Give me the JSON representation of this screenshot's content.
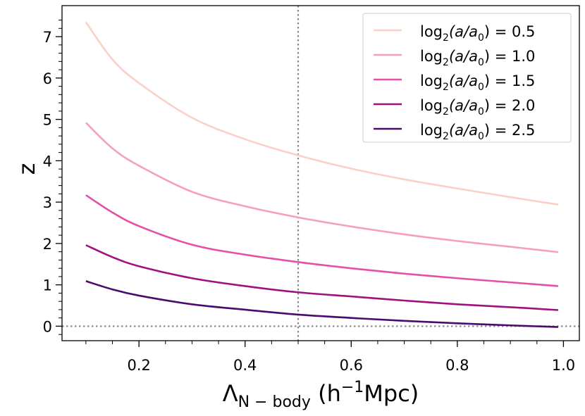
{
  "chart_data": {
    "type": "line",
    "title": "",
    "xlabel": "Λ",
    "xlabel_sub": "N − body",
    "xlabel_units_open": " (h",
    "xlabel_units_sup": "−1",
    "xlabel_units_close": "Mpc)",
    "ylabel": "z",
    "xlim": [
      0.055,
      1.03
    ],
    "ylim": [
      -0.35,
      7.75
    ],
    "xticks": [
      0.2,
      0.4,
      0.6,
      0.8,
      1.0
    ],
    "xtick_labels": [
      "0.2",
      "0.4",
      "0.6",
      "0.8",
      "1.0"
    ],
    "yticks": [
      0,
      1,
      2,
      3,
      4,
      5,
      6,
      7
    ],
    "ytick_labels": [
      "0",
      "1",
      "2",
      "3",
      "4",
      "5",
      "6",
      "7"
    ],
    "reference_lines": [
      {
        "orientation": "vertical",
        "value": 0.5,
        "style": "dotted",
        "color": "#888888"
      },
      {
        "orientation": "horizontal",
        "value": 0.0,
        "style": "dotted",
        "color": "#888888"
      }
    ],
    "legend_position": "top-right",
    "x": [
      0.1,
      0.15,
      0.2,
      0.3,
      0.4,
      0.5,
      0.6,
      0.7,
      0.8,
      0.9,
      0.99
    ],
    "series": [
      {
        "name": "0.5",
        "color": "#fbd0c8",
        "values": [
          7.35,
          6.45,
          5.88,
          5.04,
          4.52,
          4.13,
          3.81,
          3.55,
          3.33,
          3.12,
          2.94
        ]
      },
      {
        "name": "1.0",
        "color": "#f59ec2",
        "values": [
          4.92,
          4.3,
          3.88,
          3.25,
          2.9,
          2.63,
          2.41,
          2.22,
          2.06,
          1.92,
          1.79
        ]
      },
      {
        "name": "1.5",
        "color": "#e64fa6",
        "values": [
          3.17,
          2.75,
          2.42,
          1.97,
          1.73,
          1.55,
          1.4,
          1.27,
          1.16,
          1.06,
          0.97
        ]
      },
      {
        "name": "2.0",
        "color": "#a0107f",
        "values": [
          1.96,
          1.67,
          1.45,
          1.16,
          0.97,
          0.82,
          0.72,
          0.62,
          0.53,
          0.46,
          0.39
        ]
      },
      {
        "name": "2.5",
        "color": "#4a0a6e",
        "values": [
          1.09,
          0.89,
          0.74,
          0.53,
          0.4,
          0.28,
          0.2,
          0.13,
          0.07,
          0.02,
          -0.02
        ]
      }
    ],
    "legend": {
      "label_prefix": "log",
      "label_sub": "2",
      "label_open": "(a/a",
      "label_sub0": "0",
      "label_close": ") = "
    }
  }
}
